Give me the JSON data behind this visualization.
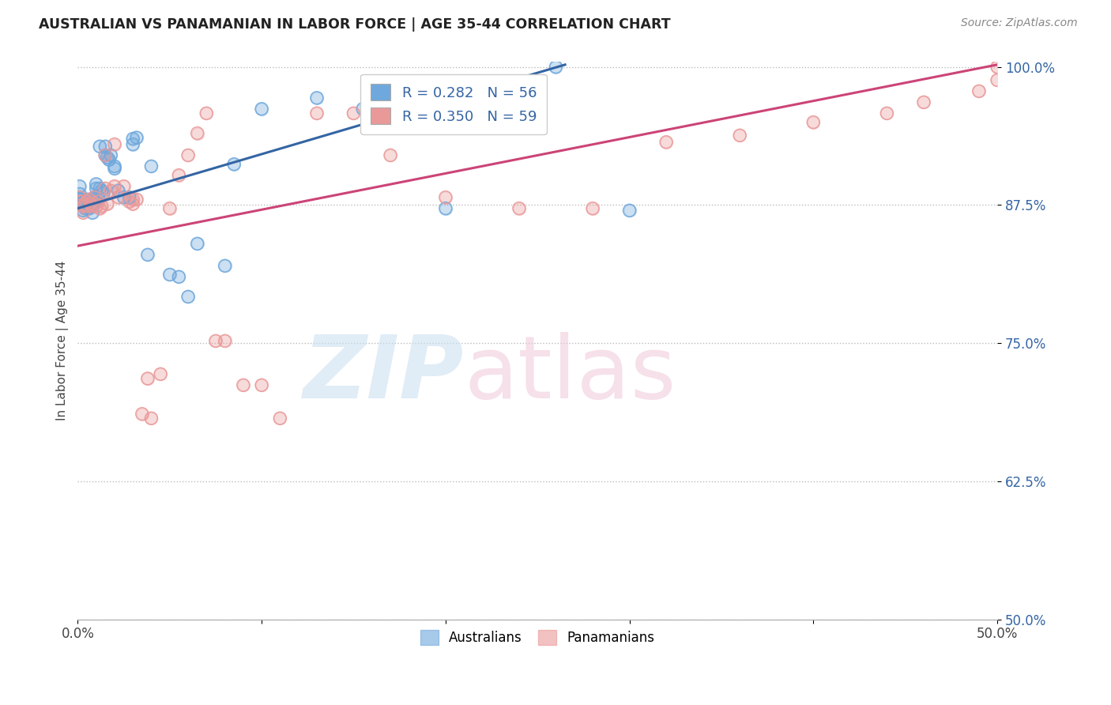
{
  "title": "AUSTRALIAN VS PANAMANIAN IN LABOR FORCE | AGE 35-44 CORRELATION CHART",
  "source": "Source: ZipAtlas.com",
  "ylabel": "In Labor Force | Age 35-44",
  "xlim": [
    0.0,
    0.5
  ],
  "ylim": [
    0.5,
    1.005
  ],
  "xticks": [
    0.0,
    0.1,
    0.2,
    0.3,
    0.4,
    0.5
  ],
  "yticks": [
    0.5,
    0.625,
    0.75,
    0.875,
    1.0
  ],
  "xtick_labels": [
    "0.0%",
    "",
    "",
    "",
    "",
    "50.0%"
  ],
  "ytick_labels": [
    "50.0%",
    "62.5%",
    "75.0%",
    "87.5%",
    "100.0%"
  ],
  "blue_R": 0.282,
  "blue_N": 56,
  "pink_R": 0.35,
  "pink_N": 59,
  "blue_color": "#6fa8dc",
  "pink_color": "#ea9999",
  "blue_line_color": "#3465a4",
  "pink_line_color": "#cc4477",
  "blue_line_x": [
    0.0,
    0.265
  ],
  "blue_line_y": [
    0.872,
    1.002
  ],
  "pink_line_x": [
    0.0,
    0.5
  ],
  "pink_line_y": [
    0.838,
    1.002
  ],
  "australian_x": [
    0.001,
    0.001,
    0.001,
    0.002,
    0.002,
    0.003,
    0.003,
    0.004,
    0.004,
    0.005,
    0.005,
    0.005,
    0.006,
    0.006,
    0.007,
    0.007,
    0.008,
    0.008,
    0.009,
    0.009,
    0.01,
    0.01,
    0.011,
    0.012,
    0.013,
    0.014,
    0.015,
    0.016,
    0.017,
    0.018,
    0.02,
    0.022,
    0.025,
    0.028,
    0.03,
    0.032,
    0.038,
    0.04,
    0.05,
    0.055,
    0.06,
    0.065,
    0.08,
    0.085,
    0.1,
    0.13,
    0.155,
    0.2,
    0.26,
    0.3,
    0.03,
    0.02,
    0.015,
    0.012,
    0.01,
    0.008
  ],
  "australian_y": [
    0.88,
    0.885,
    0.892,
    0.875,
    0.88,
    0.87,
    0.878,
    0.872,
    0.878,
    0.876,
    0.88,
    0.876,
    0.875,
    0.872,
    0.873,
    0.878,
    0.878,
    0.875,
    0.882,
    0.878,
    0.89,
    0.878,
    0.882,
    0.89,
    0.888,
    0.886,
    0.92,
    0.918,
    0.916,
    0.92,
    0.91,
    0.888,
    0.882,
    0.882,
    0.93,
    0.936,
    0.83,
    0.91,
    0.812,
    0.81,
    0.792,
    0.84,
    0.82,
    0.912,
    0.962,
    0.972,
    0.962,
    0.872,
    1.0,
    0.87,
    0.935,
    0.908,
    0.928,
    0.928,
    0.894,
    0.868
  ],
  "panamanian_x": [
    0.001,
    0.001,
    0.002,
    0.002,
    0.003,
    0.003,
    0.004,
    0.005,
    0.005,
    0.006,
    0.007,
    0.008,
    0.008,
    0.009,
    0.009,
    0.01,
    0.011,
    0.012,
    0.013,
    0.015,
    0.016,
    0.018,
    0.02,
    0.022,
    0.025,
    0.028,
    0.03,
    0.032,
    0.035,
    0.038,
    0.04,
    0.045,
    0.05,
    0.055,
    0.06,
    0.065,
    0.07,
    0.075,
    0.08,
    0.09,
    0.1,
    0.11,
    0.13,
    0.15,
    0.17,
    0.2,
    0.24,
    0.28,
    0.32,
    0.36,
    0.4,
    0.44,
    0.46,
    0.49,
    0.5,
    0.5,
    0.02,
    0.03,
    0.015
  ],
  "panamanian_y": [
    0.878,
    0.882,
    0.875,
    0.878,
    0.868,
    0.874,
    0.876,
    0.874,
    0.878,
    0.88,
    0.876,
    0.874,
    0.878,
    0.876,
    0.882,
    0.874,
    0.878,
    0.872,
    0.874,
    0.92,
    0.876,
    0.888,
    0.93,
    0.882,
    0.892,
    0.878,
    0.876,
    0.88,
    0.686,
    0.718,
    0.682,
    0.722,
    0.872,
    0.902,
    0.92,
    0.94,
    0.958,
    0.752,
    0.752,
    0.712,
    0.712,
    0.682,
    0.958,
    0.958,
    0.92,
    0.882,
    0.872,
    0.872,
    0.932,
    0.938,
    0.95,
    0.958,
    0.968,
    0.978,
    0.988,
    1.0,
    0.892,
    0.88,
    0.89
  ]
}
